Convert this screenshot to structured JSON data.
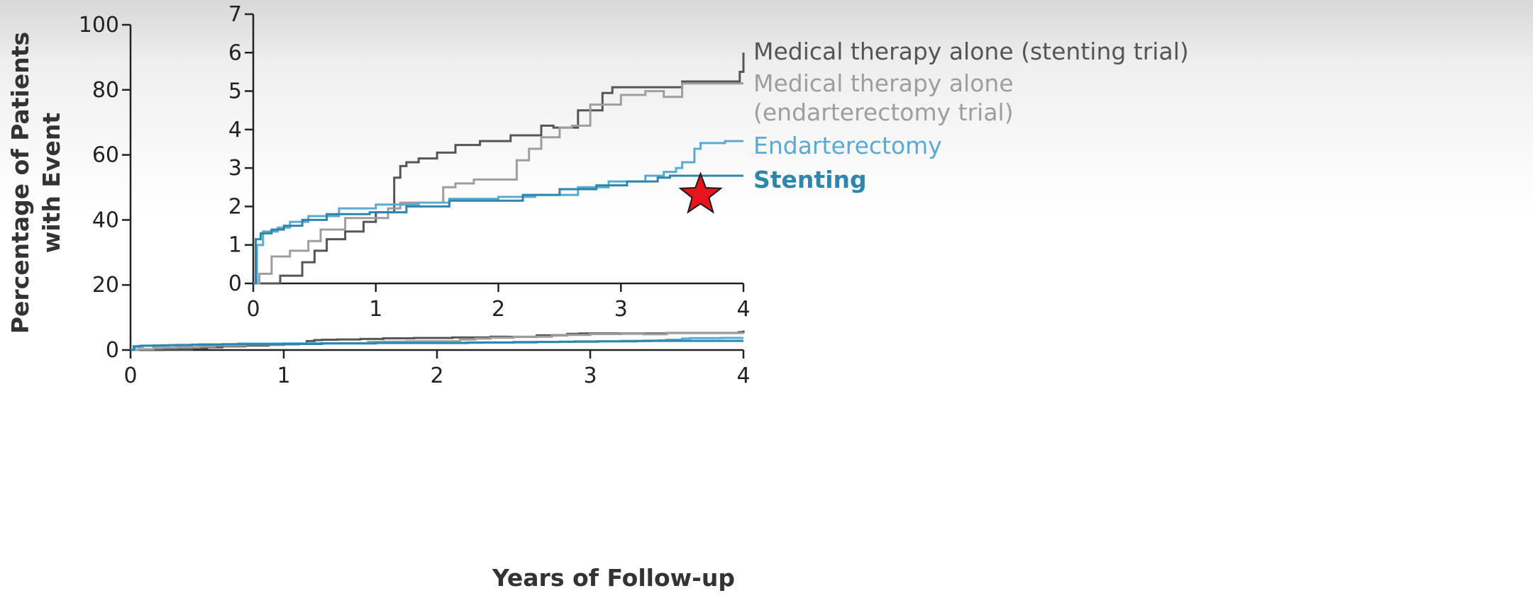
{
  "chart_data": {
    "type": "line",
    "title": "",
    "xlabel": "Years of Follow-up",
    "ylabel_line1": "Percentage of Patients",
    "ylabel_line2": "with Event",
    "main": {
      "xlim": [
        0,
        4
      ],
      "ylim": [
        0,
        100
      ],
      "xticks": [
        "0",
        "1",
        "2",
        "3",
        "4"
      ],
      "yticks": [
        "0",
        "20",
        "40",
        "60",
        "80",
        "100"
      ]
    },
    "inset": {
      "xlim": [
        0,
        4
      ],
      "ylim": [
        0,
        7
      ],
      "xticks": [
        "0",
        "1",
        "2",
        "3",
        "4"
      ],
      "yticks": [
        "0",
        "1",
        "2",
        "3",
        "4",
        "5",
        "6",
        "7"
      ]
    },
    "grid": false,
    "legend": "right",
    "series": [
      {
        "name": "Medical therapy alone (stenting trial)",
        "color": "#555555",
        "label_lines": [
          "Medical therapy alone (stenting trial)"
        ],
        "x": [
          0,
          0.22,
          0.22,
          0.4,
          0.4,
          0.5,
          0.5,
          0.6,
          0.6,
          0.75,
          0.75,
          0.9,
          0.9,
          1.0,
          1.0,
          1.15,
          1.15,
          1.2,
          1.2,
          1.25,
          1.25,
          1.35,
          1.35,
          1.5,
          1.5,
          1.65,
          1.65,
          1.85,
          1.85,
          2.1,
          2.1,
          2.35,
          2.35,
          2.45,
          2.45,
          2.65,
          2.65,
          2.85,
          2.85,
          2.93,
          2.93,
          3.5,
          3.5,
          3.97,
          3.97,
          4.0,
          4.0
        ],
        "y": [
          0,
          0,
          0.2,
          0.2,
          0.55,
          0.55,
          0.85,
          0.85,
          1.15,
          1.15,
          1.35,
          1.35,
          1.6,
          1.6,
          1.85,
          1.85,
          2.75,
          2.75,
          3.05,
          3.05,
          3.15,
          3.15,
          3.25,
          3.25,
          3.4,
          3.4,
          3.6,
          3.6,
          3.7,
          3.7,
          3.85,
          3.85,
          4.1,
          4.1,
          4.05,
          4.05,
          4.5,
          4.5,
          4.95,
          4.95,
          5.1,
          5.1,
          5.25,
          5.25,
          5.5,
          5.5,
          6.0
        ]
      },
      {
        "name": "Medical therapy alone (endarterectomy trial)",
        "color": "#9e9e9e",
        "label_lines": [
          "Medical therapy alone",
          "(endarterectomy trial)"
        ],
        "x": [
          0,
          0.05,
          0.05,
          0.15,
          0.15,
          0.3,
          0.3,
          0.45,
          0.45,
          0.55,
          0.55,
          0.75,
          0.75,
          1.1,
          1.1,
          1.2,
          1.2,
          1.55,
          1.55,
          1.65,
          1.65,
          1.8,
          1.8,
          2.15,
          2.15,
          2.25,
          2.25,
          2.35,
          2.35,
          2.5,
          2.5,
          2.6,
          2.6,
          2.75,
          2.75,
          3.0,
          3.0,
          3.2,
          3.2,
          3.35,
          3.35,
          3.5,
          3.5,
          3.55,
          3.55,
          4.0
        ],
        "y": [
          0,
          0,
          0.25,
          0.25,
          0.7,
          0.7,
          0.85,
          0.85,
          1.1,
          1.1,
          1.4,
          1.4,
          1.7,
          1.7,
          1.95,
          1.95,
          2.1,
          2.1,
          2.5,
          2.5,
          2.6,
          2.6,
          2.7,
          2.7,
          3.2,
          3.2,
          3.5,
          3.5,
          3.8,
          3.8,
          4.05,
          4.05,
          4.1,
          4.1,
          4.65,
          4.65,
          4.9,
          4.9,
          5.0,
          5.0,
          4.85,
          4.85,
          5.2,
          5.2,
          5.2,
          5.2
        ]
      },
      {
        "name": "Endarterectomy",
        "color": "#5aaad2",
        "label_lines": [
          "Endarterectomy"
        ],
        "x": [
          0,
          0.03,
          0.03,
          0.08,
          0.08,
          0.2,
          0.2,
          0.3,
          0.3,
          0.45,
          0.45,
          0.7,
          0.7,
          1.0,
          1.0,
          1.35,
          1.35,
          1.6,
          1.6,
          2.0,
          2.0,
          2.3,
          2.3,
          2.65,
          2.65,
          2.9,
          2.9,
          3.2,
          3.2,
          3.35,
          3.35,
          3.45,
          3.45,
          3.5,
          3.5,
          3.6,
          3.6,
          3.65,
          3.65,
          3.85,
          3.85,
          4.0
        ],
        "y": [
          0,
          0,
          1.0,
          1.0,
          1.35,
          1.35,
          1.45,
          1.45,
          1.6,
          1.6,
          1.75,
          1.75,
          1.95,
          1.95,
          2.05,
          2.05,
          2.1,
          2.1,
          2.2,
          2.2,
          2.25,
          2.25,
          2.3,
          2.3,
          2.5,
          2.5,
          2.65,
          2.65,
          2.8,
          2.8,
          2.9,
          2.9,
          3.0,
          3.0,
          3.15,
          3.15,
          3.5,
          3.5,
          3.65,
          3.65,
          3.7,
          3.7
        ]
      },
      {
        "name": "Stenting",
        "color": "#2f86ad",
        "label_lines": [
          "Stenting"
        ],
        "x": [
          0,
          0.02,
          0.02,
          0.06,
          0.06,
          0.15,
          0.15,
          0.25,
          0.25,
          0.4,
          0.4,
          0.6,
          0.6,
          0.95,
          0.95,
          1.25,
          1.25,
          1.6,
          1.6,
          2.2,
          2.2,
          2.5,
          2.5,
          2.8,
          2.8,
          3.05,
          3.05,
          3.3,
          3.3,
          3.4,
          3.4,
          4.0
        ],
        "y": [
          0,
          0,
          1.15,
          1.15,
          1.3,
          1.3,
          1.4,
          1.4,
          1.5,
          1.5,
          1.65,
          1.65,
          1.8,
          1.8,
          1.85,
          1.85,
          2.0,
          2.0,
          2.15,
          2.15,
          2.3,
          2.3,
          2.45,
          2.45,
          2.55,
          2.55,
          2.65,
          2.65,
          2.75,
          2.75,
          2.8,
          2.8
        ]
      }
    ],
    "annotations": [
      {
        "type": "star",
        "color": "#e8141c",
        "x": 3.65,
        "y": 2.3
      }
    ]
  }
}
